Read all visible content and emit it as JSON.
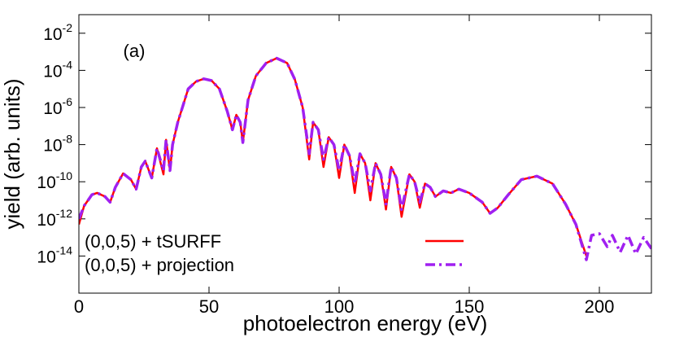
{
  "chart_data": {
    "type": "line",
    "annotation": "(a)",
    "x_label": "photoelectron energy (eV)",
    "y_label": "yield (arb. units)",
    "log_y": true,
    "grid": false,
    "legend_corner": "lower left",
    "xlim": [
      0,
      220
    ],
    "xticks": [
      0,
      50,
      100,
      150,
      200
    ],
    "ylim": [
      1e-16,
      0.1
    ],
    "yticks": [
      {
        "value": 1e-14,
        "label": "10-14"
      },
      {
        "value": 1e-12,
        "label": "10-12"
      },
      {
        "value": 1e-10,
        "label": "10-10"
      },
      {
        "value": 1e-08,
        "label": "10-8"
      },
      {
        "value": 1e-06,
        "label": "10-6"
      },
      {
        "value": 0.0001,
        "label": "10-4"
      },
      {
        "value": 0.01,
        "label": "10-2"
      }
    ],
    "x": [
      0,
      2,
      5,
      7,
      10,
      12,
      14,
      17,
      20,
      22,
      24,
      25.5,
      28,
      30,
      32.5,
      33.5,
      35,
      36,
      38,
      42,
      45,
      48,
      51,
      54,
      57,
      59,
      60.5,
      62,
      63,
      65,
      68,
      72,
      76,
      80,
      83,
      86,
      88.5,
      90,
      92,
      94,
      96,
      98,
      100,
      102,
      104,
      106,
      108,
      110,
      112,
      114,
      116,
      118,
      120,
      122,
      124,
      127,
      129,
      131,
      133,
      135,
      137,
      140,
      143,
      146,
      150,
      155,
      158,
      161,
      165,
      170,
      176,
      182,
      187,
      191,
      195,
      197,
      200,
      203,
      205,
      208,
      211,
      214,
      217,
      220
    ],
    "series": [
      {
        "name": "(0,0,5) + tSURFF",
        "color": "#ff0000",
        "style": "solid",
        "values": [
          5e-13,
          5e-12,
          2e-11,
          2.5e-11,
          1.6e-11,
          7.9e-12,
          5e-11,
          2.8e-10,
          1.3e-10,
          4e-11,
          6.3e-10,
          1.3e-09,
          1.6e-10,
          6.3e-09,
          2.5e-10,
          1.8e-08,
          4e-10,
          1e-08,
          1.6e-07,
          1e-05,
          2.5e-05,
          3.5e-05,
          2.8e-05,
          1e-05,
          6.3e-07,
          6.3e-08,
          4e-07,
          1.6e-07,
          1.3e-08,
          2.5e-06,
          5e-05,
          0.00025,
          0.00045,
          0.00025,
          3.2e-05,
          1e-06,
          1.6e-09,
          1.6e-07,
          6.3e-08,
          6.3e-10,
          2.5e-08,
          1e-08,
          1.6e-10,
          1e-08,
          2.5e-09,
          2.5e-11,
          3.2e-09,
          1e-09,
          1e-11,
          1e-09,
          2.5e-10,
          3.2e-12,
          6.3e-10,
          1.6e-10,
          1.3e-12,
          2.5e-10,
          1e-10,
          4e-12,
          7.9e-11,
          5e-11,
          1.6e-11,
          3.2e-11,
          2.5e-11,
          4e-11,
          2.5e-11,
          7.9e-12,
          2e-12,
          4e-12,
          2e-11,
          1.3e-10,
          2e-10,
          7.9e-11,
          6.3e-12,
          5e-13,
          1e-14,
          null,
          null,
          null,
          null,
          null,
          null,
          null,
          null,
          null
        ]
      },
      {
        "name": "(0,0,5) + projection",
        "color": "#a020f0",
        "style": "dashdot",
        "values": [
          1e-12,
          5e-12,
          2e-11,
          2.5e-11,
          1.6e-11,
          7.9e-12,
          5e-11,
          2.8e-10,
          1.3e-10,
          4e-11,
          6.3e-10,
          1.3e-09,
          1.6e-10,
          6.3e-09,
          4e-10,
          1.8e-08,
          4e-10,
          1e-08,
          1.6e-07,
          1e-05,
          2.5e-05,
          3.5e-05,
          2.8e-05,
          1e-05,
          6.3e-07,
          6.3e-08,
          4e-07,
          1.6e-07,
          1.3e-08,
          2.5e-06,
          5e-05,
          0.00025,
          0.00045,
          0.00025,
          3.2e-05,
          1e-06,
          3.2e-09,
          1.6e-07,
          6.3e-08,
          1.6e-09,
          2.5e-08,
          1e-08,
          4e-10,
          1e-08,
          2.5e-09,
          7.9e-11,
          3.2e-09,
          1e-09,
          3.2e-11,
          1e-09,
          2.5e-10,
          6.3e-12,
          6.3e-10,
          1.6e-10,
          3.2e-12,
          2.5e-10,
          1e-10,
          7.9e-12,
          7.9e-11,
          5e-11,
          1.6e-11,
          3.2e-11,
          2.5e-11,
          4e-11,
          2.5e-11,
          7.9e-12,
          2e-12,
          4e-12,
          2e-11,
          1.3e-10,
          2e-10,
          7.9e-11,
          6.3e-12,
          5e-13,
          6.3e-15,
          1.3e-13,
          1.6e-13,
          3.2e-14,
          1.3e-13,
          1.6e-14,
          1.3e-13,
          1.3e-14,
          1e-13,
          2.5e-14
        ]
      }
    ]
  }
}
